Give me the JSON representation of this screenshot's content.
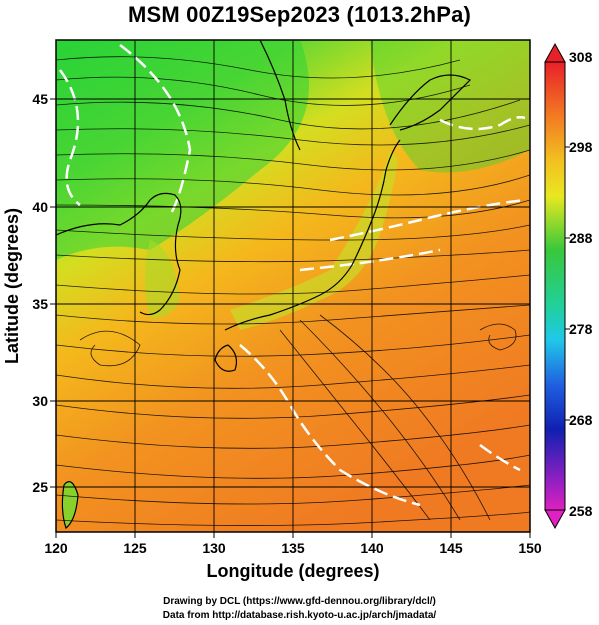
{
  "title": "MSM 00Z19Sep2023 (1013.2hPa)",
  "x_axis": {
    "label": "Longitude (degrees)",
    "ticks": [
      "120",
      "125",
      "130",
      "135",
      "140",
      "145",
      "150"
    ],
    "range": [
      120,
      150
    ]
  },
  "y_axis": {
    "label": "Latitude  (degrees)",
    "ticks": [
      "25",
      "30",
      "35",
      "40",
      "45"
    ],
    "range": [
      22.4,
      47.6
    ]
  },
  "colorbar": {
    "labels": [
      "308",
      "298",
      "288",
      "278",
      "268",
      "258"
    ],
    "range": [
      258,
      308
    ]
  },
  "credits": {
    "line1": "Drawing by DCL (https://www.gfd-dennou.org/library/dcl/)",
    "line2": "Data from http://database.rish.kyoto-u.ac.jp/arch/jmadata/"
  },
  "colors": {
    "warm": "#f08a1e",
    "mid": "#e8e020",
    "cool": "#38c83a",
    "ocean_south": "#f07a22",
    "coast": "#000000",
    "contour": "#ffffff"
  }
}
